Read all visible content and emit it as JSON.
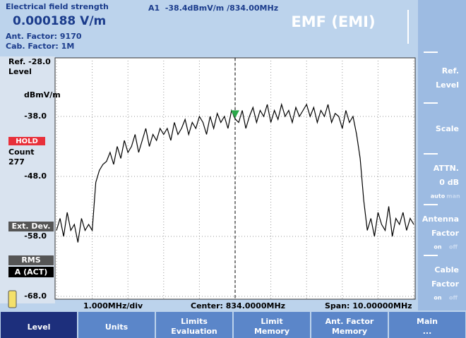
{
  "header": {
    "measurement": "Electrical field strength",
    "reading": "0.000188 V/m",
    "ant_factor": "Ant. Factor: 9170",
    "cab_factor": "Cab. Factor: 1M",
    "marker_readout": "A1  -38.4dBmV/m /834.00MHz",
    "mode": "EMF (EMI)"
  },
  "left_panel": {
    "ref": "Ref. -28.0",
    "ref_sub": "Level",
    "unit": "dBmV/m",
    "hold": "HOLD",
    "count_label": "Count",
    "count": "277",
    "ext_dev": "Ext. Dev.",
    "detector": "RMS",
    "trace": "A (ACT)"
  },
  "footer": {
    "div": "1.000MHz/div",
    "center": "Center: 834.0000MHz",
    "span": "Span: 10.00000MHz"
  },
  "right_softkeys": [
    {
      "lines": [
        "Ref.",
        "Level"
      ]
    },
    {
      "lines": [
        "Scale"
      ]
    },
    {
      "lines": [
        "ATTN.",
        "0 dB"
      ],
      "options": [
        "auto",
        "man"
      ]
    },
    {
      "lines": [
        "Antenna",
        "Factor"
      ],
      "options": [
        "on",
        "off"
      ]
    },
    {
      "lines": [
        "Cable",
        "Factor"
      ],
      "options": [
        "on",
        "off"
      ]
    }
  ],
  "bottom_softkeys": [
    {
      "lines": [
        "Level"
      ]
    },
    {
      "lines": [
        "Units"
      ]
    },
    {
      "lines": [
        "Limits",
        "Evaluation"
      ]
    },
    {
      "lines": [
        "Limit",
        "Memory"
      ]
    },
    {
      "lines": [
        "Ant. Factor",
        "Memory"
      ]
    },
    {
      "lines": [
        "Main",
        "..."
      ]
    }
  ],
  "chart_data": {
    "type": "line",
    "xlim": [
      829,
      839
    ],
    "ylim": [
      -68,
      -28
    ],
    "xticks": [
      829,
      830,
      831,
      832,
      833,
      834,
      835,
      836,
      837,
      838,
      839
    ],
    "yticks": [
      {
        "value": -38,
        "label": "-38.0"
      },
      {
        "value": -48,
        "label": "-48.0"
      },
      {
        "value": -58,
        "label": "-58.0"
      },
      {
        "value": -68,
        "label": "-68.0"
      }
    ],
    "grid": true,
    "color": "#000000",
    "marker": {
      "x": 834,
      "value": -38.4,
      "color": "#2aa84a"
    },
    "x": [
      829,
      829.1,
      829.2,
      829.3,
      829.4,
      829.5,
      829.6,
      829.7,
      829.8,
      829.9,
      830,
      830.1,
      830.2,
      830.3,
      830.4,
      830.5,
      830.6,
      830.7,
      830.8,
      830.9,
      831,
      831.1,
      831.2,
      831.3,
      831.4,
      831.5,
      831.6,
      831.7,
      831.8,
      831.9,
      832,
      832.1,
      832.2,
      832.3,
      832.4,
      832.5,
      832.6,
      832.7,
      832.8,
      832.9,
      833,
      833.1,
      833.2,
      833.3,
      833.4,
      833.5,
      833.6,
      833.7,
      833.8,
      833.9,
      834,
      834.1,
      834.2,
      834.3,
      834.4,
      834.5,
      834.6,
      834.7,
      834.8,
      834.9,
      835,
      835.1,
      835.2,
      835.3,
      835.4,
      835.5,
      835.6,
      835.7,
      835.8,
      835.9,
      836,
      836.1,
      836.2,
      836.3,
      836.4,
      836.5,
      836.6,
      836.7,
      836.8,
      836.9,
      837,
      837.1,
      837.2,
      837.3,
      837.4,
      837.5,
      837.6,
      837.7,
      837.8,
      837.9,
      838,
      838.1,
      838.2,
      838.3,
      838.4,
      838.5,
      838.6,
      838.7,
      838.8,
      838.9,
      839
    ],
    "values": [
      -57,
      -55,
      -58,
      -54,
      -57,
      -56,
      -59,
      -55,
      -57,
      -56,
      -57,
      -49,
      -47,
      -46,
      -45.5,
      -44,
      -46,
      -43,
      -45,
      -42,
      -44,
      -43,
      -41,
      -44,
      -42,
      -40,
      -43,
      -41,
      -42,
      -40,
      -41,
      -40,
      -42,
      -39,
      -41,
      -40,
      -38.5,
      -41,
      -39,
      -40,
      -38,
      -39,
      -41,
      -38,
      -40,
      -37.5,
      -39,
      -38,
      -40,
      -37,
      -38.4,
      -39,
      -37,
      -40,
      -38,
      -36.5,
      -39,
      -37,
      -38,
      -36,
      -39,
      -37,
      -38.5,
      -36,
      -38,
      -37,
      -39,
      -36.5,
      -38,
      -37,
      -36,
      -38,
      -36.5,
      -39,
      -37,
      -38,
      -36,
      -39,
      -37.5,
      -38,
      -40,
      -37,
      -39,
      -38,
      -41,
      -45,
      -52,
      -57,
      -55,
      -58,
      -54,
      -56,
      -57,
      -53,
      -58,
      -55,
      -56,
      -54,
      -57,
      -55,
      -56
    ]
  }
}
